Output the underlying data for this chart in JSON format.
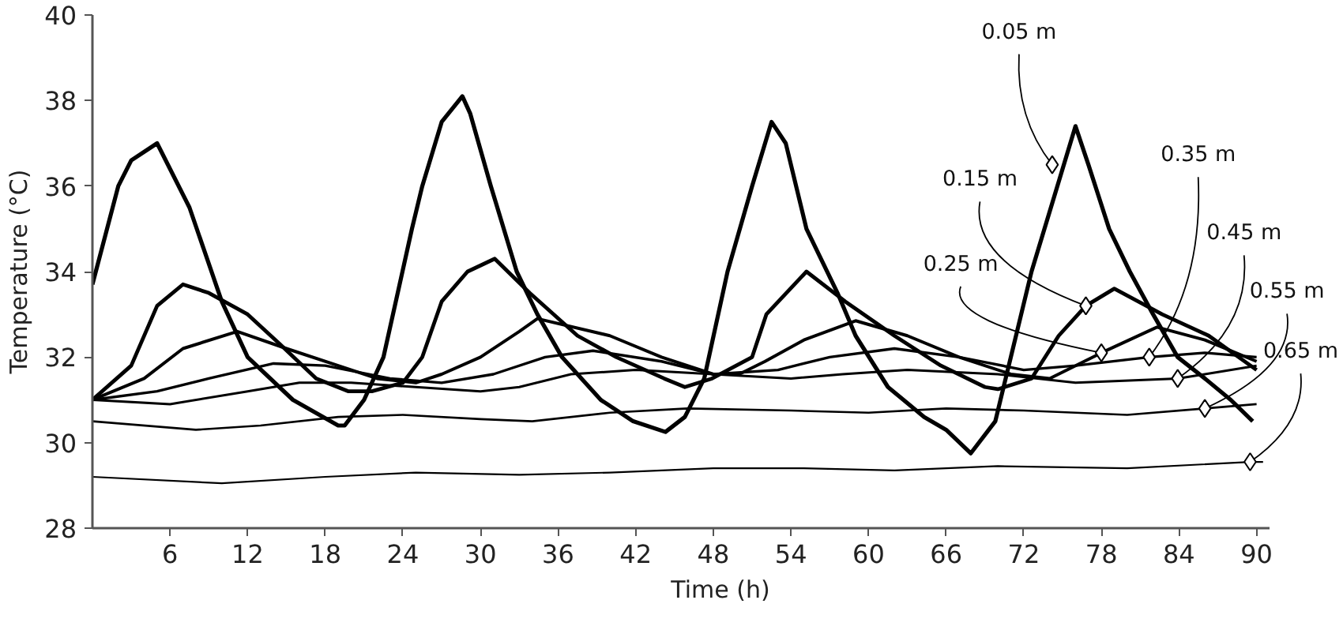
{
  "chart_data": {
    "type": "line",
    "xlabel": "Time (h)",
    "ylabel": "Temperature (°C)",
    "xlim": [
      0,
      91
    ],
    "ylim": [
      28,
      40
    ],
    "xticks": [
      6,
      12,
      18,
      24,
      30,
      36,
      42,
      48,
      54,
      60,
      66,
      72,
      78,
      84,
      90
    ],
    "yticks": [
      28,
      30,
      32,
      34,
      36,
      38,
      40
    ],
    "grid": false,
    "series": [
      {
        "color": "#000000",
        "x": [
          0,
          2,
          3,
          5,
          7.5,
          10,
          12,
          15.5,
          19,
          19.5,
          21,
          22.5,
          24.7,
          25.5,
          27,
          28.6,
          29.2,
          30.8,
          32.8,
          34.4,
          36.3,
          39.3,
          41.8,
          44.3,
          45.8,
          47.3,
          49.1,
          51,
          52.5,
          53.6,
          55.2,
          57.6,
          59,
          61.5,
          64.3,
          66,
          67.9,
          69.8,
          71,
          72.6,
          76,
          77,
          78.6,
          80.2,
          82,
          83.9,
          86,
          88,
          89.7
        ],
        "values": [
          33.7,
          36.0,
          36.6,
          37.0,
          35.5,
          33.3,
          32.0,
          31.0,
          30.4,
          30.4,
          31.0,
          32.0,
          35.0,
          36.0,
          37.5,
          38.1,
          37.7,
          36.0,
          34.0,
          33.0,
          32.0,
          31.0,
          30.5,
          30.25,
          30.6,
          31.5,
          34.0,
          36.0,
          37.5,
          37.0,
          35.0,
          33.5,
          32.5,
          31.3,
          30.6,
          30.3,
          29.75,
          30.5,
          32.0,
          34.0,
          37.4,
          36.5,
          35.0,
          34.0,
          33.0,
          32.0,
          31.5,
          31.0,
          30.5
        ]
      },
      {
        "color": "#000000",
        "x": [
          0,
          3,
          5,
          7,
          9,
          12,
          14.5,
          17.3,
          19.8,
          21.6,
          24,
          25.5,
          27,
          29,
          31.1,
          33.8,
          37.5,
          40.5,
          44.2,
          45.8,
          47.9,
          51,
          52.1,
          55.2,
          58.2,
          62,
          65.6,
          69,
          70,
          72.6,
          74.7,
          76.8,
          79,
          82.7,
          86.3,
          90
        ],
        "values": [
          31.0,
          31.8,
          33.2,
          33.7,
          33.5,
          33.0,
          32.3,
          31.5,
          31.2,
          31.2,
          31.4,
          32.0,
          33.3,
          34.0,
          34.3,
          33.5,
          32.5,
          32.0,
          31.5,
          31.3,
          31.5,
          32.0,
          33.0,
          34.0,
          33.3,
          32.5,
          31.8,
          31.3,
          31.25,
          31.5,
          32.5,
          33.2,
          33.6,
          33.0,
          32.5,
          31.7
        ]
      },
      {
        "color": "#000000",
        "x": [
          0,
          4,
          7,
          11.2,
          15,
          19,
          22,
          25,
          27,
          30,
          33,
          34.4,
          40,
          44,
          48,
          50,
          52,
          55,
          59,
          63,
          67,
          71,
          74,
          78,
          82.3,
          86,
          90
        ],
        "values": [
          31.0,
          31.5,
          32.2,
          32.6,
          32.2,
          31.8,
          31.5,
          31.4,
          31.6,
          32.0,
          32.6,
          32.9,
          32.5,
          32.0,
          31.6,
          31.6,
          31.9,
          32.4,
          32.85,
          32.5,
          32.0,
          31.6,
          31.5,
          32.1,
          32.7,
          32.4,
          31.9
        ]
      },
      {
        "color": "#000000",
        "x": [
          0,
          5,
          9,
          14,
          18,
          23,
          27,
          31,
          35,
          38.7,
          44,
          48,
          53,
          57,
          62,
          67,
          72,
          76,
          81.7,
          86,
          90
        ],
        "values": [
          31.0,
          31.2,
          31.5,
          31.85,
          31.8,
          31.5,
          31.4,
          31.6,
          32.0,
          32.15,
          31.9,
          31.6,
          31.7,
          32.0,
          32.2,
          32.0,
          31.7,
          31.8,
          32.0,
          32.1,
          32.0
        ]
      },
      {
        "color": "#000000",
        "x": [
          0,
          6,
          12,
          16,
          20,
          25,
          30,
          33,
          37,
          42,
          48,
          54,
          58,
          63,
          70,
          76,
          83.9,
          86,
          90
        ],
        "values": [
          31.0,
          30.9,
          31.2,
          31.4,
          31.4,
          31.3,
          31.2,
          31.3,
          31.6,
          31.7,
          31.6,
          31.5,
          31.6,
          31.7,
          31.6,
          31.4,
          31.5,
          31.6,
          31.8
        ]
      },
      {
        "color": "#000000",
        "x": [
          0,
          8,
          13,
          19,
          24,
          30,
          34,
          40,
          46,
          54,
          60,
          66,
          72,
          80,
          86,
          90
        ],
        "values": [
          30.5,
          30.3,
          30.4,
          30.6,
          30.65,
          30.55,
          30.5,
          30.7,
          30.8,
          30.75,
          30.7,
          30.8,
          30.75,
          30.65,
          30.8,
          30.9
        ]
      },
      {
        "color": "#000000",
        "x": [
          0,
          10,
          18,
          25,
          33,
          40,
          48,
          55,
          62,
          70,
          80,
          89.5,
          90.5
        ],
        "values": [
          29.2,
          29.05,
          29.2,
          29.3,
          29.25,
          29.3,
          29.4,
          29.4,
          29.35,
          29.45,
          29.4,
          29.55,
          29.55
        ]
      }
    ],
    "annotations": [
      {
        "text": "0.05 m",
        "x": 74.2,
        "y": 36.5
      },
      {
        "text": "0.15 m",
        "x": 76.8,
        "y": 33.2
      },
      {
        "text": "0.25 m",
        "x": 78.0,
        "y": 32.1
      },
      {
        "text": "0.35 m",
        "x": 81.7,
        "y": 32.0
      },
      {
        "text": "0.45 m",
        "x": 83.9,
        "y": 31.5
      },
      {
        "text": "0.55 m",
        "x": 86.0,
        "y": 30.8
      },
      {
        "text": "0.65 m",
        "x": 89.5,
        "y": 29.55
      }
    ]
  }
}
